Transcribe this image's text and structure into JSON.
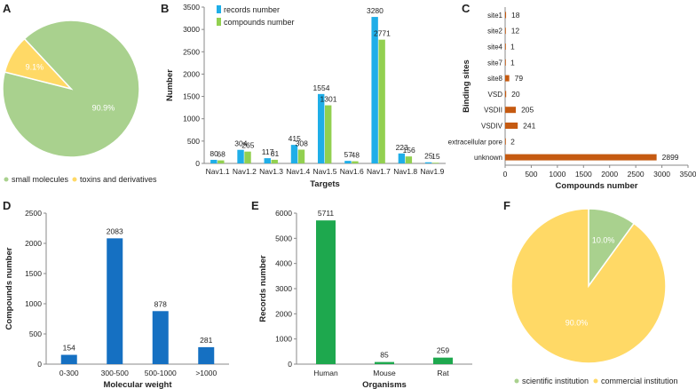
{
  "colors": {
    "blue": "#1FAEE8",
    "green": "#92D050",
    "orange": "#C55A11",
    "dblue": "#1570C2",
    "dgreen": "#1EA84E",
    "pie_green": "#A9D18E",
    "pie_yellow": "#FFD966",
    "axis": "#888888",
    "text": "#222222"
  },
  "chart_data": [
    {
      "panel": "A",
      "type": "pie",
      "labels": [
        "small molecules",
        "toxins and derivatives"
      ],
      "values": [
        90.9,
        9.1
      ],
      "display": [
        "90.9%",
        "9.1%"
      ],
      "legend_position": "bottom"
    },
    {
      "panel": "B",
      "type": "bar",
      "categories": [
        "Nav1.1",
        "Nav1.2",
        "Nav1.3",
        "Nav1.4",
        "Nav1.5",
        "Nav1.6",
        "Nav1.7",
        "Nav1.8",
        "Nav1.9"
      ],
      "series": [
        {
          "name": "records number",
          "values": [
            80,
            304,
            117,
            415,
            1554,
            57,
            3280,
            223,
            25
          ]
        },
        {
          "name": "compounds number",
          "values": [
            68,
            265,
            81,
            308,
            1301,
            48,
            2771,
            156,
            15
          ]
        }
      ],
      "xlabel": "Targets",
      "ylabel": "Number",
      "ylim": [
        0,
        3500
      ],
      "yticks": [
        0,
        500,
        1000,
        1500,
        2000,
        2500,
        3000,
        3500
      ],
      "legend_position": "top-left"
    },
    {
      "panel": "C",
      "type": "bar",
      "orientation": "horizontal",
      "categories": [
        "site1",
        "site2",
        "site4",
        "site7",
        "site8",
        "VSD",
        "VSDII",
        "VSDIV",
        "extracellular pore",
        "unknown"
      ],
      "values": [
        18,
        12,
        1,
        1,
        79,
        20,
        205,
        241,
        2,
        2899
      ],
      "xlabel": "Compounds number",
      "ylabel": "Binding sites",
      "xlim": [
        0,
        3500
      ],
      "xticks": [
        0,
        500,
        1000,
        1500,
        2000,
        2500,
        3000,
        3500
      ]
    },
    {
      "panel": "D",
      "type": "bar",
      "categories": [
        "0-300",
        "300-500",
        "500-1000",
        ">1000"
      ],
      "values": [
        154,
        2083,
        878,
        281
      ],
      "xlabel": "Molecular weight",
      "ylabel": "Compounds number",
      "ylim": [
        0,
        2500
      ],
      "yticks": [
        0,
        500,
        1000,
        1500,
        2000,
        2500
      ]
    },
    {
      "panel": "E",
      "type": "bar",
      "categories": [
        "Human",
        "Mouse",
        "Rat"
      ],
      "values": [
        5711,
        85,
        259
      ],
      "xlabel": "Organisms",
      "ylabel": "Records number",
      "ylim": [
        0,
        6000
      ],
      "yticks": [
        0,
        1000,
        2000,
        3000,
        4000,
        5000,
        6000
      ]
    },
    {
      "panel": "F",
      "type": "pie",
      "labels": [
        "scientific institution",
        "commercial institution"
      ],
      "values": [
        10.0,
        90.0
      ],
      "display": [
        "10.0%",
        "90.0%"
      ],
      "legend_position": "bottom"
    }
  ]
}
